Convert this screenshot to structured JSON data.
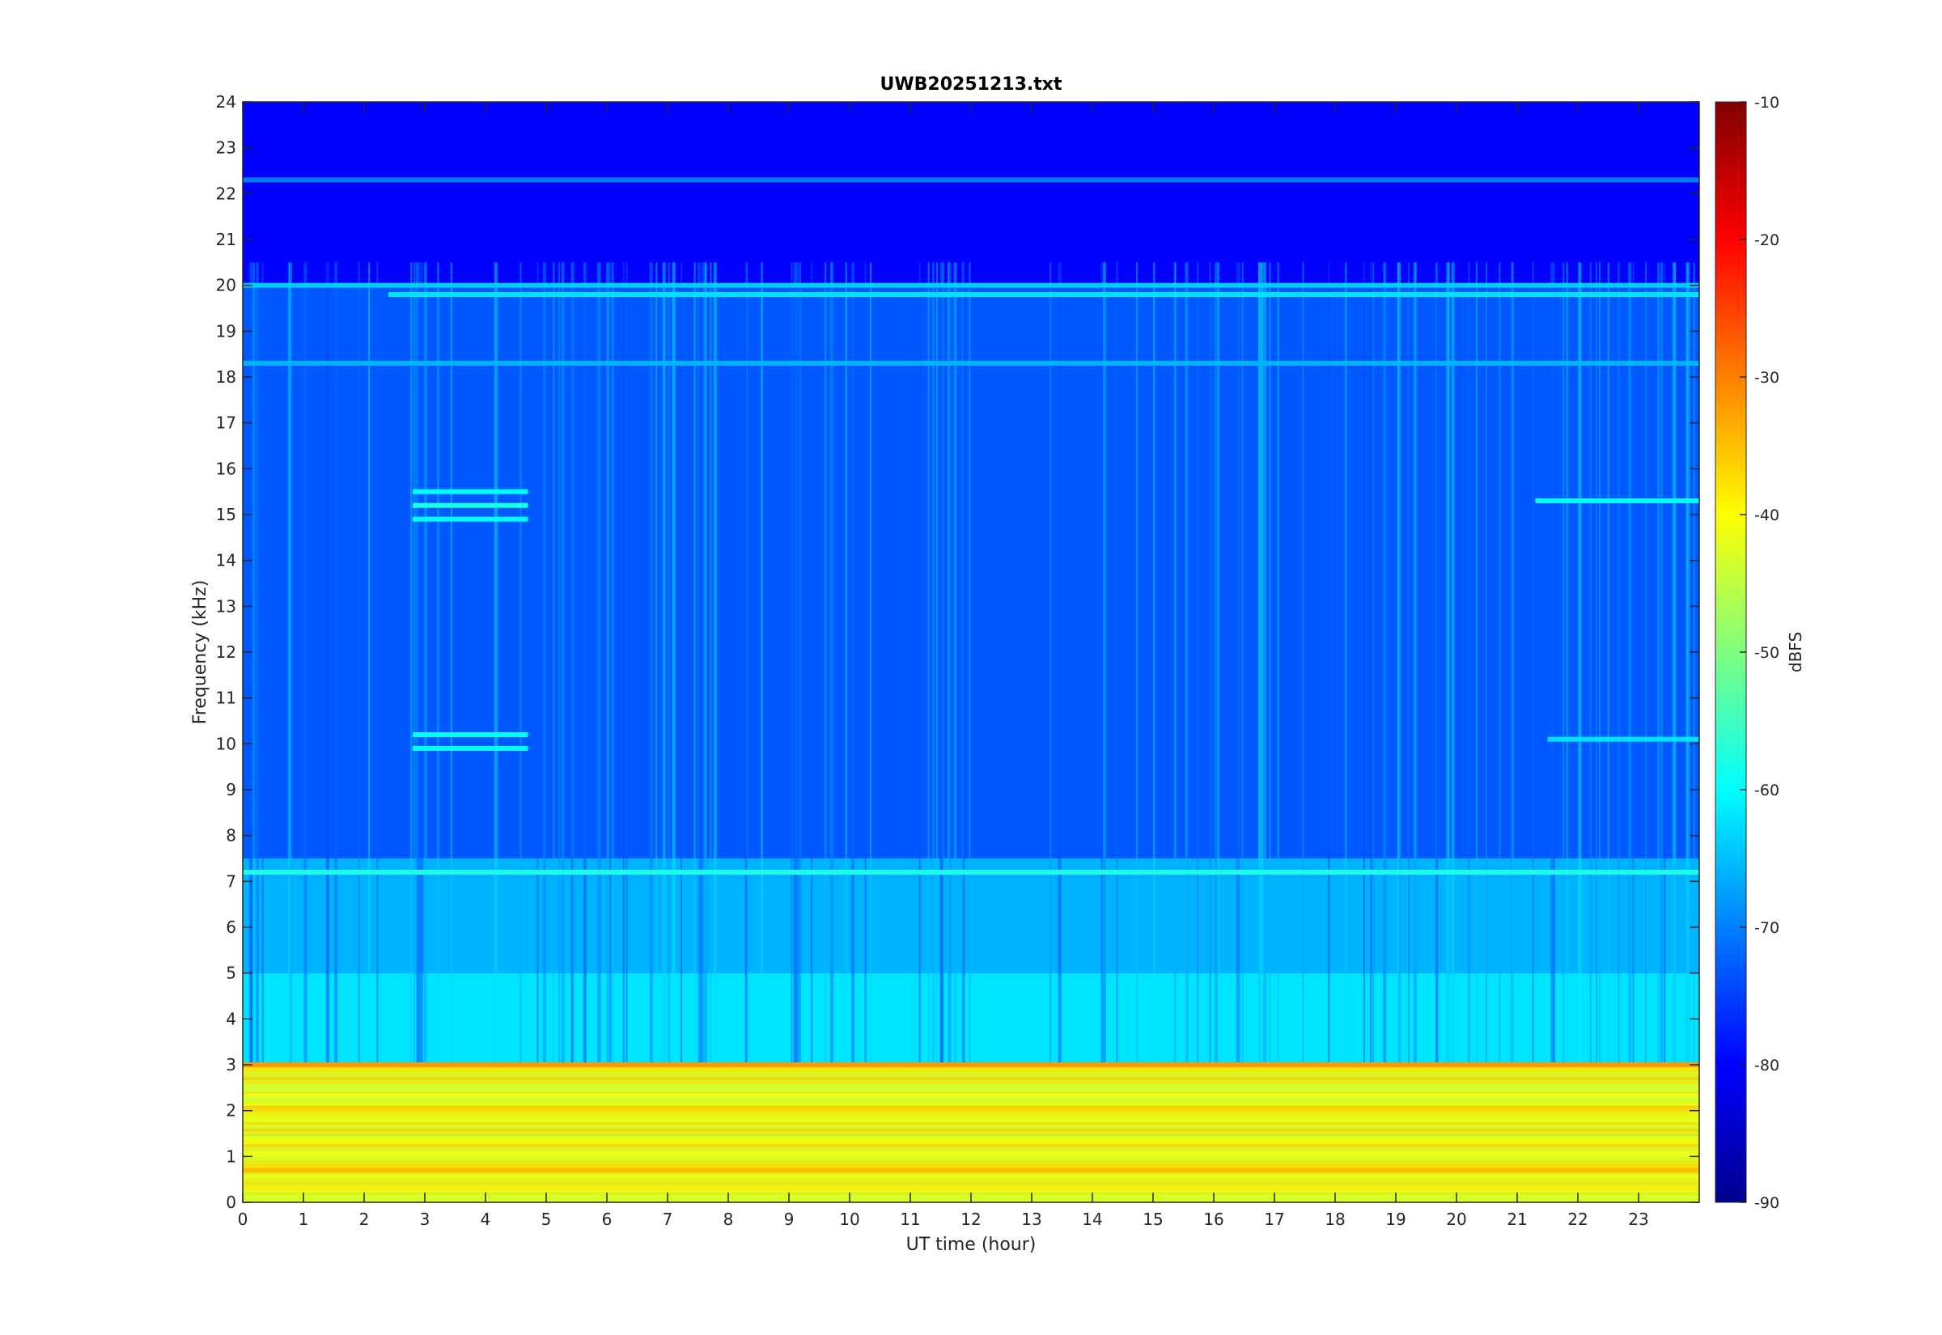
{
  "chart_data": {
    "type": "heatmap",
    "title": "UWB20251213.txt",
    "xlabel": "UT time (hour)",
    "ylabel": "Frequency (kHz)",
    "xlim": [
      0,
      24
    ],
    "ylim": [
      0,
      24
    ],
    "x_ticks": [
      0,
      1,
      2,
      3,
      4,
      5,
      6,
      7,
      8,
      9,
      10,
      11,
      12,
      13,
      14,
      15,
      16,
      17,
      18,
      19,
      20,
      21,
      22,
      23
    ],
    "y_ticks": [
      0,
      1,
      2,
      3,
      4,
      5,
      6,
      7,
      8,
      9,
      10,
      11,
      12,
      13,
      14,
      15,
      16,
      17,
      18,
      19,
      20,
      21,
      22,
      23,
      24
    ],
    "colormap": "jet",
    "colorbar": {
      "label": "dBFS",
      "range": [
        -90,
        -10
      ],
      "ticks": [
        -90,
        -80,
        -70,
        -60,
        -50,
        -40,
        -30,
        -20,
        -10
      ]
    },
    "grid": false,
    "approx_levels": [
      {
        "freq_khz": [
          0,
          3
        ],
        "dbfs": -43
      },
      {
        "freq_khz": [
          3,
          5
        ],
        "dbfs": -62
      },
      {
        "freq_khz": [
          5,
          7.5
        ],
        "dbfs": -66
      },
      {
        "freq_khz": [
          7.5,
          20
        ],
        "dbfs": -73
      },
      {
        "freq_khz": [
          20,
          24
        ],
        "dbfs": -80
      }
    ],
    "lines": [
      {
        "freq_khz": 20.0,
        "hours": [
          0,
          24
        ],
        "dbfs": -64
      },
      {
        "freq_khz": 19.8,
        "hours": [
          2.4,
          24
        ],
        "dbfs": -62
      },
      {
        "freq_khz": 18.3,
        "hours": [
          0,
          24
        ],
        "dbfs": -66
      },
      {
        "freq_khz": 22.3,
        "hours": [
          0,
          24
        ],
        "dbfs": -70
      },
      {
        "freq_khz": 7.2,
        "hours": [
          0,
          24
        ],
        "dbfs": -58
      },
      {
        "freq_khz": 3.0,
        "hours": [
          0,
          24
        ],
        "dbfs": -32
      },
      {
        "freq_khz": 0.7,
        "hours": [
          0,
          24
        ],
        "dbfs": -35
      },
      {
        "freq_khz": 15.5,
        "hours": [
          2.8,
          4.7
        ],
        "dbfs": -60
      },
      {
        "freq_khz": 15.2,
        "hours": [
          2.8,
          4.7
        ],
        "dbfs": -58
      },
      {
        "freq_khz": 14.9,
        "hours": [
          2.8,
          4.7
        ],
        "dbfs": -60
      },
      {
        "freq_khz": 10.2,
        "hours": [
          2.8,
          4.7
        ],
        "dbfs": -60
      },
      {
        "freq_khz": 9.9,
        "hours": [
          2.8,
          4.7
        ],
        "dbfs": -60
      },
      {
        "freq_khz": 15.3,
        "hours": [
          21.3,
          24
        ],
        "dbfs": -60
      },
      {
        "freq_khz": 10.1,
        "hours": [
          21.5,
          24
        ],
        "dbfs": -62
      }
    ]
  }
}
